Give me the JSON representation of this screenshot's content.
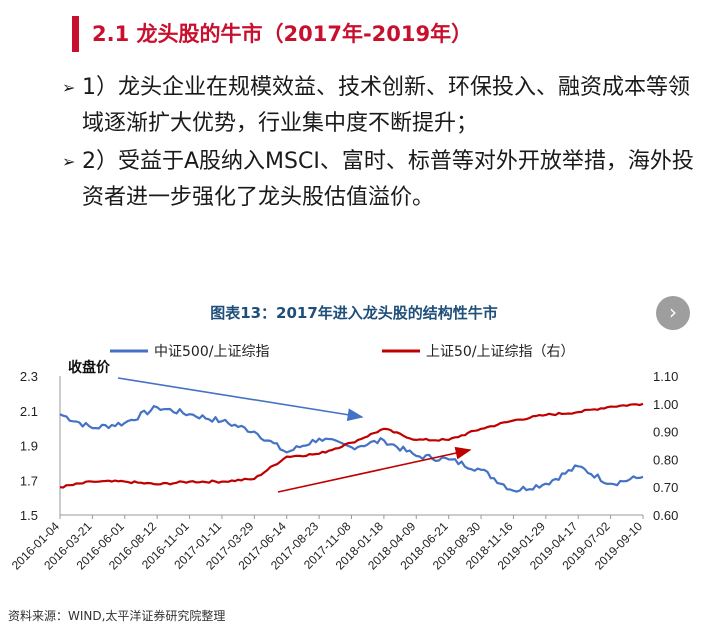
{
  "section": {
    "title": "2.1 龙头股的牛市（2017年-2019年）"
  },
  "bullets": [
    "1）龙头企业在规模效益、技术创新、环保投入、融资成本等领域逐渐扩大优势，行业集中度不断提升；",
    "2）受益于A股纳入MSCI、富时、标普等对外开放举措，海外投资者进一步强化了龙头股估值溢价。"
  ],
  "chart_title": "图表13：2017年进入龙头股的结构性牛市",
  "annotation": "收盘价",
  "source": "资料来源：WIND,太平洋证券研究院整理",
  "next_icon": "chevron-right-icon",
  "chart_data": {
    "type": "line",
    "x": [
      "2016-01-04",
      "2016-03-21",
      "2016-06-01",
      "2016-08-12",
      "2016-11-01",
      "2017-01-11",
      "2017-03-29",
      "2017-06-14",
      "2017-08-23",
      "2017-11-08",
      "2018-01-18",
      "2018-04-09",
      "2018-06-21",
      "2018-08-30",
      "2018-11-16",
      "2019-01-29",
      "2019-04-17",
      "2019-07-02",
      "2019-09-10"
    ],
    "y_left": {
      "ticks": [
        "1.5",
        "1.7",
        "1.9",
        "2.1",
        "2.3"
      ],
      "range": [
        1.5,
        2.3
      ]
    },
    "y_right": {
      "ticks": [
        "0.60",
        "0.70",
        "0.80",
        "0.90",
        "1.00",
        "1.10"
      ],
      "range": [
        0.6,
        1.1
      ]
    },
    "series": [
      {
        "name": "中证500/上证综指",
        "axis": "left",
        "color": "#4472c4",
        "values": [
          2.08,
          2.0,
          2.03,
          2.12,
          2.08,
          2.04,
          1.98,
          1.86,
          1.94,
          1.89,
          1.93,
          1.84,
          1.82,
          1.76,
          1.64,
          1.68,
          1.78,
          1.68,
          1.72
        ]
      },
      {
        "name": "上证50/上证综指（右）",
        "axis": "right",
        "color": "#c00000",
        "values": [
          0.7,
          0.72,
          0.72,
          0.71,
          0.72,
          0.72,
          0.73,
          0.81,
          0.82,
          0.86,
          0.91,
          0.87,
          0.87,
          0.91,
          0.94,
          0.96,
          0.97,
          0.99,
          1.0
        ]
      }
    ]
  }
}
